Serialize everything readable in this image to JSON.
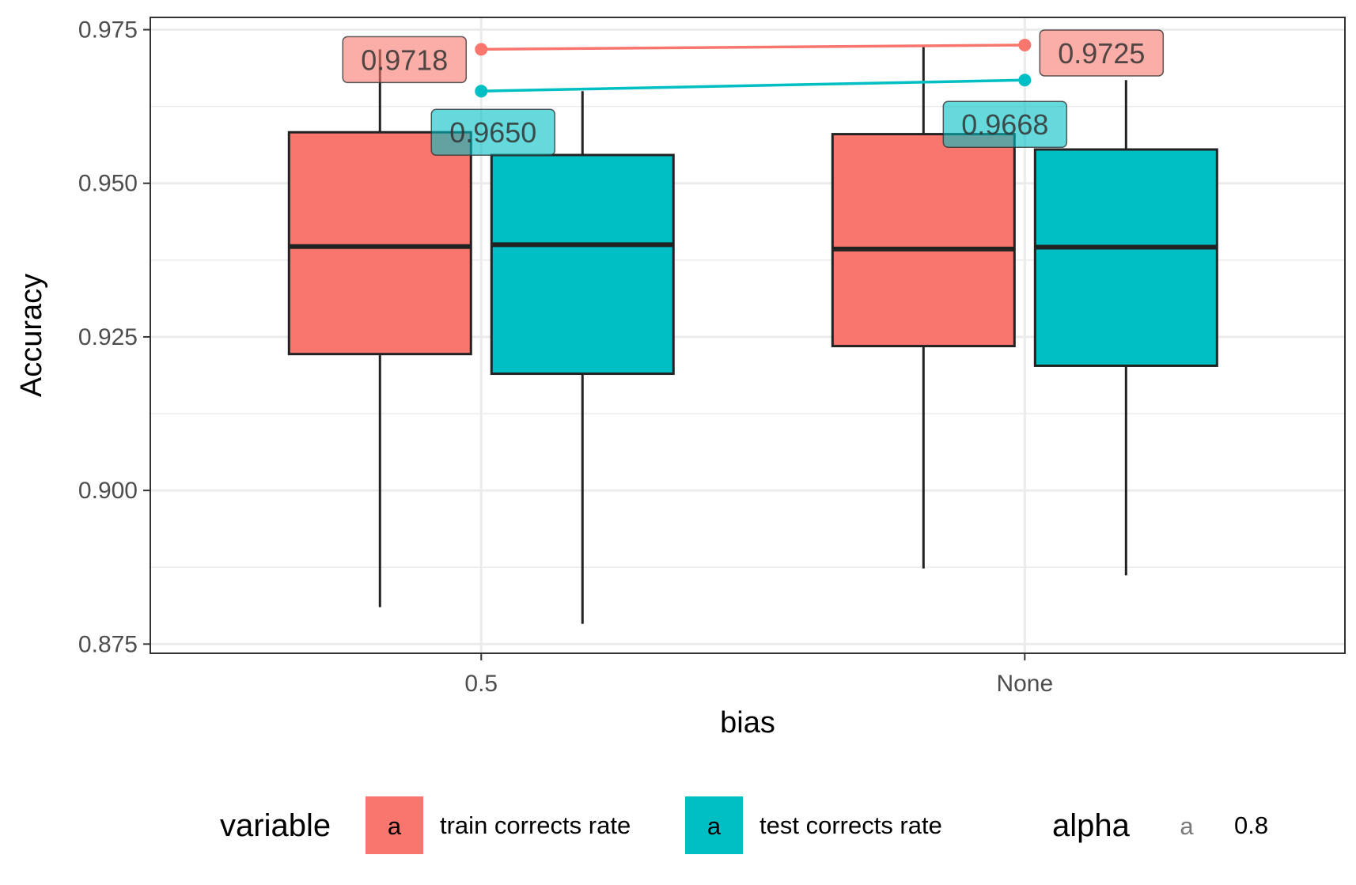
{
  "chart_data": {
    "type": "boxplot",
    "xlabel": "bias",
    "ylabel": "Accuracy",
    "categories": [
      "0.5",
      "None"
    ],
    "ylim": [
      0.8735,
      0.977
    ],
    "yticks": [
      "0.875",
      "0.900",
      "0.925",
      "0.950",
      "0.975"
    ],
    "grid": true,
    "legend_position": "bottom",
    "series": [
      {
        "name": "train corrects rate",
        "color": "#F8766D",
        "boxes": [
          {
            "category": "0.5",
            "min": 0.881,
            "q1": 0.9222,
            "median": 0.9397,
            "q3": 0.9583,
            "max": 0.9718
          },
          {
            "category": "None",
            "min": 0.8873,
            "q1": 0.9235,
            "median": 0.9393,
            "q3": 0.958,
            "max": 0.9725
          }
        ],
        "max_line": {
          "values": [
            0.9718,
            0.9725
          ],
          "labels": [
            "0.9718",
            "0.9725"
          ]
        }
      },
      {
        "name": "test corrects rate",
        "color": "#00BFC4",
        "boxes": [
          {
            "category": "0.5",
            "min": 0.8783,
            "q1": 0.919,
            "median": 0.94,
            "q3": 0.9546,
            "max": 0.965
          },
          {
            "category": "None",
            "min": 0.8862,
            "q1": 0.9203,
            "median": 0.9396,
            "q3": 0.9555,
            "max": 0.9668
          }
        ],
        "max_line": {
          "values": [
            0.965,
            0.9668
          ],
          "labels": [
            "0.9650",
            "0.9668"
          ]
        }
      }
    ],
    "legend": {
      "variable_title": "variable",
      "key_glyph": "a",
      "alpha_title": "alpha",
      "alpha_value": "0.8"
    }
  }
}
